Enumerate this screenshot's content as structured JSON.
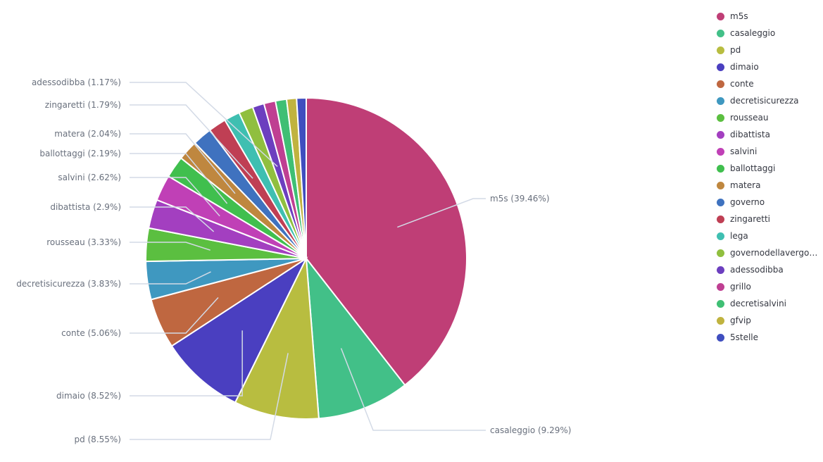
{
  "chart_data": {
    "type": "pie",
    "slices": [
      {
        "label": "m5s",
        "value": 39.46,
        "color": "#bf3e76",
        "callout": "m5s (39.46%)"
      },
      {
        "label": "casaleggio",
        "value": 9.29,
        "color": "#42c088",
        "callout": "casaleggio (9.29%)"
      },
      {
        "label": "pd",
        "value": 8.55,
        "color": "#b8bd40",
        "callout": "pd (8.55%)"
      },
      {
        "label": "dimaio",
        "value": 8.52,
        "color": "#4a3fc0",
        "callout": "dimaio (8.52%)"
      },
      {
        "label": "conte",
        "value": 5.06,
        "color": "#bf6740",
        "callout": "conte (5.06%)"
      },
      {
        "label": "decretisicurezza",
        "value": 3.83,
        "color": "#3f98c0",
        "callout": "decretisicurezza (3.83%)"
      },
      {
        "label": "rousseau",
        "value": 3.33,
        "color": "#5bbf40",
        "callout": "rousseau (3.33%)"
      },
      {
        "label": "dibattista",
        "value": 2.9,
        "color": "#a33fc0",
        "callout": "dibattista (2.9%)"
      },
      {
        "label": "salvini",
        "value": 2.62,
        "color": "#c040b6",
        "callout": "salvini (2.62%)"
      },
      {
        "label": "ballottaggi",
        "value": 2.19,
        "color": "#40bf4e",
        "callout": "ballottaggi (2.19%)"
      },
      {
        "label": "matera",
        "value": 2.04,
        "color": "#bf873f",
        "callout": "matera (2.04%)"
      },
      {
        "label": "governo",
        "value": 1.95,
        "color": "#3f72bf",
        "callout": ""
      },
      {
        "label": "zingaretti",
        "value": 1.79,
        "color": "#bf3f54",
        "callout": "zingaretti (1.79%)"
      },
      {
        "label": "lega",
        "value": 1.6,
        "color": "#3fbfb1",
        "callout": ""
      },
      {
        "label": "governodellavergog...",
        "value": 1.45,
        "color": "#90bf3f",
        "callout": ""
      },
      {
        "label": "adessodibba",
        "value": 1.17,
        "color": "#6c3fbf",
        "callout": "adessodibba (1.17%)"
      },
      {
        "label": "grillo",
        "value": 1.17,
        "color": "#bf3f92",
        "callout": ""
      },
      {
        "label": "decretisalvini",
        "value": 1.12,
        "color": "#3fbf74",
        "callout": ""
      },
      {
        "label": "gfvip",
        "value": 1.0,
        "color": "#c0b33f",
        "callout": ""
      },
      {
        "label": "5stelle",
        "value": 0.96,
        "color": "#3f4ebf",
        "callout": ""
      }
    ]
  }
}
